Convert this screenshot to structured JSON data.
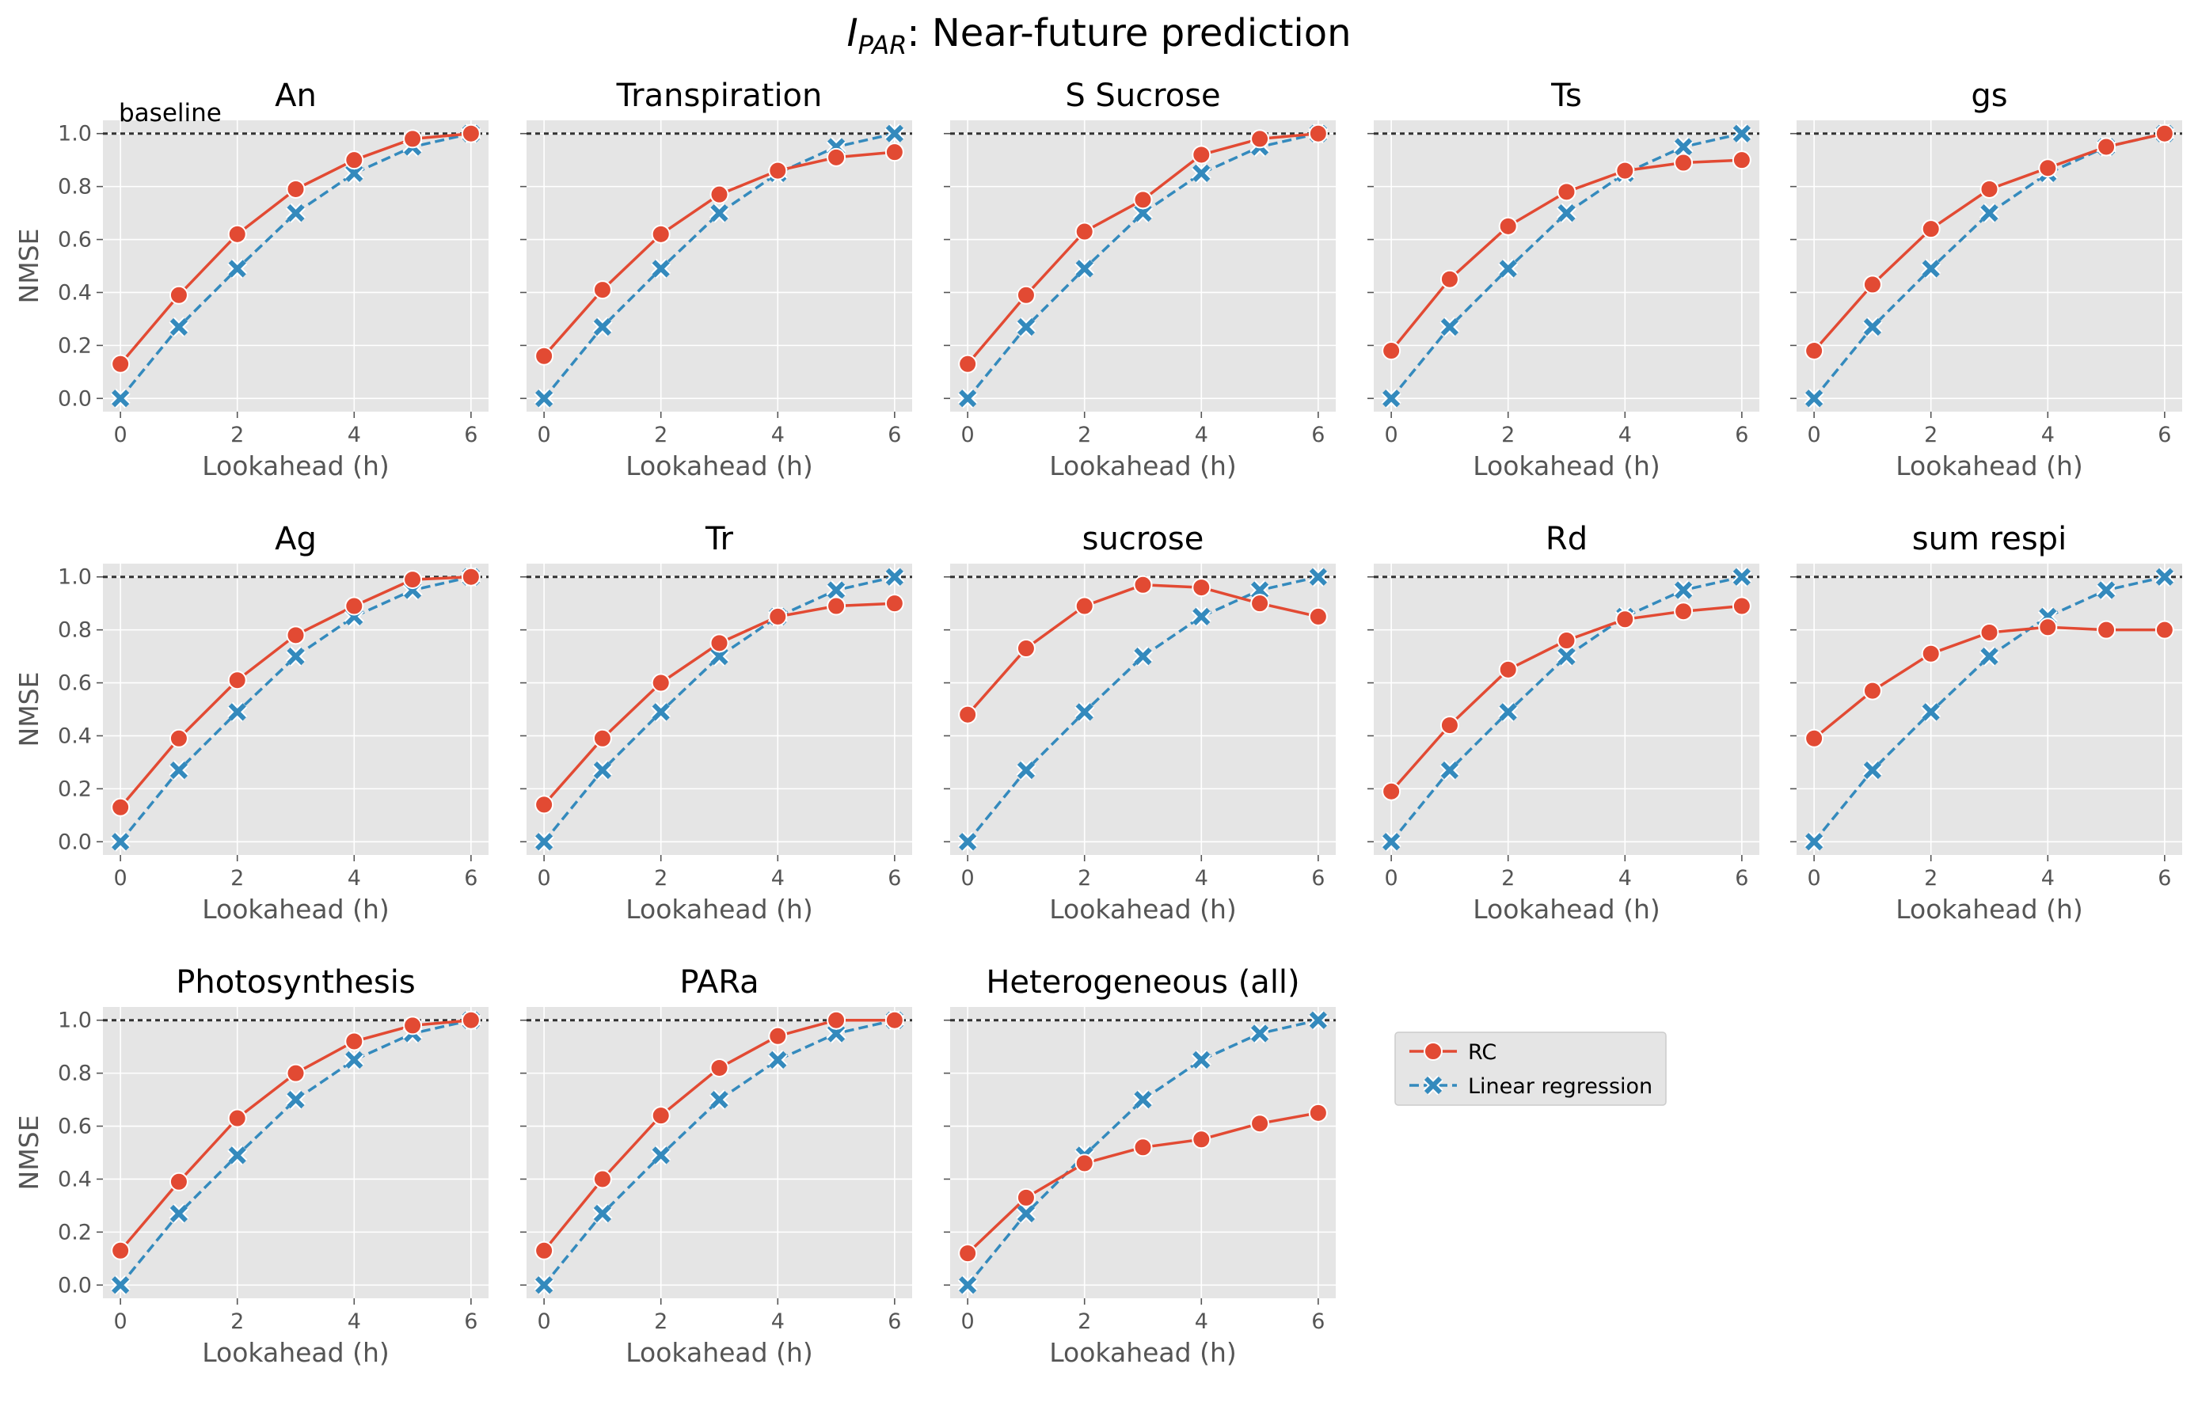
{
  "figure": {
    "title_prefix": "I",
    "title_subscript": "PAR",
    "title_rest": ": Near-future prediction",
    "baseline_label": "baseline",
    "legend": [
      {
        "label": "RC",
        "color": "#E24A33",
        "marker": "circle",
        "linestyle": "solid"
      },
      {
        "label": "Linear regression",
        "color": "#348ABD",
        "marker": "x",
        "linestyle": "dashed"
      }
    ],
    "colors": {
      "panel_bg": "#E5E5E5",
      "grid": "#FFFFFF",
      "baseline": "#333333",
      "rc": "#E24A33",
      "lr": "#348ABD"
    }
  },
  "chart_data": [
    {
      "type": "line",
      "title": "An",
      "xlabel": "Lookahead (h)",
      "ylabel": "NMSE",
      "x": [
        0,
        1,
        2,
        3,
        4,
        5,
        6
      ],
      "xlim": [
        -0.3,
        6.3
      ],
      "ylim": [
        -0.05,
        1.05
      ],
      "xticks": [
        0,
        2,
        4,
        6
      ],
      "yticks": [
        "0.0",
        "0.2",
        "0.4",
        "0.6",
        "0.8",
        "1.0"
      ],
      "baseline": 1.0,
      "grid": true,
      "series": [
        {
          "name": "RC",
          "values": [
            0.13,
            0.39,
            0.62,
            0.79,
            0.9,
            0.98,
            1.0
          ]
        },
        {
          "name": "Linear regression",
          "values": [
            0.0,
            0.27,
            0.49,
            0.7,
            0.85,
            0.95,
            1.0
          ]
        }
      ]
    },
    {
      "type": "line",
      "title": "Transpiration",
      "xlabel": "Lookahead (h)",
      "ylabel": "",
      "x": [
        0,
        1,
        2,
        3,
        4,
        5,
        6
      ],
      "xlim": [
        -0.3,
        6.3
      ],
      "ylim": [
        -0.05,
        1.05
      ],
      "xticks": [
        0,
        2,
        4,
        6
      ],
      "yticks": [
        "0.0",
        "0.2",
        "0.4",
        "0.6",
        "0.8",
        "1.0"
      ],
      "baseline": 1.0,
      "grid": true,
      "series": [
        {
          "name": "RC",
          "values": [
            0.16,
            0.41,
            0.62,
            0.77,
            0.86,
            0.91,
            0.93
          ]
        },
        {
          "name": "Linear regression",
          "values": [
            0.0,
            0.27,
            0.49,
            0.7,
            0.85,
            0.95,
            1.0
          ]
        }
      ]
    },
    {
      "type": "line",
      "title": "S Sucrose",
      "xlabel": "Lookahead (h)",
      "ylabel": "",
      "x": [
        0,
        1,
        2,
        3,
        4,
        5,
        6
      ],
      "xlim": [
        -0.3,
        6.3
      ],
      "ylim": [
        -0.05,
        1.05
      ],
      "xticks": [
        0,
        2,
        4,
        6
      ],
      "yticks": [
        "0.0",
        "0.2",
        "0.4",
        "0.6",
        "0.8",
        "1.0"
      ],
      "baseline": 1.0,
      "grid": true,
      "series": [
        {
          "name": "RC",
          "values": [
            0.13,
            0.39,
            0.63,
            0.75,
            0.92,
            0.98,
            1.0
          ]
        },
        {
          "name": "Linear regression",
          "values": [
            0.0,
            0.27,
            0.49,
            0.7,
            0.85,
            0.95,
            1.0
          ]
        }
      ]
    },
    {
      "type": "line",
      "title": "Ts",
      "xlabel": "Lookahead (h)",
      "ylabel": "",
      "x": [
        0,
        1,
        2,
        3,
        4,
        5,
        6
      ],
      "xlim": [
        -0.3,
        6.3
      ],
      "ylim": [
        -0.05,
        1.05
      ],
      "xticks": [
        0,
        2,
        4,
        6
      ],
      "yticks": [
        "0.0",
        "0.2",
        "0.4",
        "0.6",
        "0.8",
        "1.0"
      ],
      "baseline": 1.0,
      "grid": true,
      "series": [
        {
          "name": "RC",
          "values": [
            0.18,
            0.45,
            0.65,
            0.78,
            0.86,
            0.89,
            0.9
          ]
        },
        {
          "name": "Linear regression",
          "values": [
            0.0,
            0.27,
            0.49,
            0.7,
            0.85,
            0.95,
            1.0
          ]
        }
      ]
    },
    {
      "type": "line",
      "title": "gs",
      "xlabel": "Lookahead (h)",
      "ylabel": "",
      "x": [
        0,
        1,
        2,
        3,
        4,
        5,
        6
      ],
      "xlim": [
        -0.3,
        6.3
      ],
      "ylim": [
        -0.05,
        1.05
      ],
      "xticks": [
        0,
        2,
        4,
        6
      ],
      "yticks": [
        "0.0",
        "0.2",
        "0.4",
        "0.6",
        "0.8",
        "1.0"
      ],
      "baseline": 1.0,
      "grid": true,
      "series": [
        {
          "name": "RC",
          "values": [
            0.18,
            0.43,
            0.64,
            0.79,
            0.87,
            0.95,
            1.0
          ]
        },
        {
          "name": "Linear regression",
          "values": [
            0.0,
            0.27,
            0.49,
            0.7,
            0.85,
            0.95,
            1.0
          ]
        }
      ]
    },
    {
      "type": "line",
      "title": "Ag",
      "xlabel": "Lookahead (h)",
      "ylabel": "NMSE",
      "x": [
        0,
        1,
        2,
        3,
        4,
        5,
        6
      ],
      "xlim": [
        -0.3,
        6.3
      ],
      "ylim": [
        -0.05,
        1.05
      ],
      "xticks": [
        0,
        2,
        4,
        6
      ],
      "yticks": [
        "0.0",
        "0.2",
        "0.4",
        "0.6",
        "0.8",
        "1.0"
      ],
      "baseline": 1.0,
      "grid": true,
      "series": [
        {
          "name": "RC",
          "values": [
            0.13,
            0.39,
            0.61,
            0.78,
            0.89,
            0.99,
            1.0
          ]
        },
        {
          "name": "Linear regression",
          "values": [
            0.0,
            0.27,
            0.49,
            0.7,
            0.85,
            0.95,
            1.0
          ]
        }
      ]
    },
    {
      "type": "line",
      "title": "Tr",
      "xlabel": "Lookahead (h)",
      "ylabel": "",
      "x": [
        0,
        1,
        2,
        3,
        4,
        5,
        6
      ],
      "xlim": [
        -0.3,
        6.3
      ],
      "ylim": [
        -0.05,
        1.05
      ],
      "xticks": [
        0,
        2,
        4,
        6
      ],
      "yticks": [
        "0.0",
        "0.2",
        "0.4",
        "0.6",
        "0.8",
        "1.0"
      ],
      "baseline": 1.0,
      "grid": true,
      "series": [
        {
          "name": "RC",
          "values": [
            0.14,
            0.39,
            0.6,
            0.75,
            0.85,
            0.89,
            0.9
          ]
        },
        {
          "name": "Linear regression",
          "values": [
            0.0,
            0.27,
            0.49,
            0.7,
            0.85,
            0.95,
            1.0
          ]
        }
      ]
    },
    {
      "type": "line",
      "title": "sucrose",
      "xlabel": "Lookahead (h)",
      "ylabel": "",
      "x": [
        0,
        1,
        2,
        3,
        4,
        5,
        6
      ],
      "xlim": [
        -0.3,
        6.3
      ],
      "ylim": [
        -0.05,
        1.05
      ],
      "xticks": [
        0,
        2,
        4,
        6
      ],
      "yticks": [
        "0.0",
        "0.2",
        "0.4",
        "0.6",
        "0.8",
        "1.0"
      ],
      "baseline": 1.0,
      "grid": true,
      "series": [
        {
          "name": "RC",
          "values": [
            0.48,
            0.73,
            0.89,
            0.97,
            0.96,
            0.9,
            0.85
          ]
        },
        {
          "name": "Linear regression",
          "values": [
            0.0,
            0.27,
            0.49,
            0.7,
            0.85,
            0.95,
            1.0
          ]
        }
      ]
    },
    {
      "type": "line",
      "title": "Rd",
      "xlabel": "Lookahead (h)",
      "ylabel": "",
      "x": [
        0,
        1,
        2,
        3,
        4,
        5,
        6
      ],
      "xlim": [
        -0.3,
        6.3
      ],
      "ylim": [
        -0.05,
        1.05
      ],
      "xticks": [
        0,
        2,
        4,
        6
      ],
      "yticks": [
        "0.0",
        "0.2",
        "0.4",
        "0.6",
        "0.8",
        "1.0"
      ],
      "baseline": 1.0,
      "grid": true,
      "series": [
        {
          "name": "RC",
          "values": [
            0.19,
            0.44,
            0.65,
            0.76,
            0.84,
            0.87,
            0.89
          ]
        },
        {
          "name": "Linear regression",
          "values": [
            0.0,
            0.27,
            0.49,
            0.7,
            0.85,
            0.95,
            1.0
          ]
        }
      ]
    },
    {
      "type": "line",
      "title": "sum respi",
      "xlabel": "Lookahead (h)",
      "ylabel": "",
      "x": [
        0,
        1,
        2,
        3,
        4,
        5,
        6
      ],
      "xlim": [
        -0.3,
        6.3
      ],
      "ylim": [
        -0.05,
        1.05
      ],
      "xticks": [
        0,
        2,
        4,
        6
      ],
      "yticks": [
        "0.0",
        "0.2",
        "0.4",
        "0.6",
        "0.8",
        "1.0"
      ],
      "baseline": 1.0,
      "grid": true,
      "series": [
        {
          "name": "RC",
          "values": [
            0.39,
            0.57,
            0.71,
            0.79,
            0.81,
            0.8,
            0.8
          ]
        },
        {
          "name": "Linear regression",
          "values": [
            0.0,
            0.27,
            0.49,
            0.7,
            0.85,
            0.95,
            1.0
          ]
        }
      ]
    },
    {
      "type": "line",
      "title": "Photosynthesis",
      "xlabel": "Lookahead (h)",
      "ylabel": "NMSE",
      "x": [
        0,
        1,
        2,
        3,
        4,
        5,
        6
      ],
      "xlim": [
        -0.3,
        6.3
      ],
      "ylim": [
        -0.05,
        1.05
      ],
      "xticks": [
        0,
        2,
        4,
        6
      ],
      "yticks": [
        "0.0",
        "0.2",
        "0.4",
        "0.6",
        "0.8",
        "1.0"
      ],
      "baseline": 1.0,
      "grid": true,
      "series": [
        {
          "name": "RC",
          "values": [
            0.13,
            0.39,
            0.63,
            0.8,
            0.92,
            0.98,
            1.0
          ]
        },
        {
          "name": "Linear regression",
          "values": [
            0.0,
            0.27,
            0.49,
            0.7,
            0.85,
            0.95,
            1.0
          ]
        }
      ]
    },
    {
      "type": "line",
      "title": "PARa",
      "xlabel": "Lookahead (h)",
      "ylabel": "",
      "x": [
        0,
        1,
        2,
        3,
        4,
        5,
        6
      ],
      "xlim": [
        -0.3,
        6.3
      ],
      "ylim": [
        -0.05,
        1.05
      ],
      "xticks": [
        0,
        2,
        4,
        6
      ],
      "yticks": [
        "0.0",
        "0.2",
        "0.4",
        "0.6",
        "0.8",
        "1.0"
      ],
      "baseline": 1.0,
      "grid": true,
      "series": [
        {
          "name": "RC",
          "values": [
            0.13,
            0.4,
            0.64,
            0.82,
            0.94,
            1.0,
            1.0
          ]
        },
        {
          "name": "Linear regression",
          "values": [
            0.0,
            0.27,
            0.49,
            0.7,
            0.85,
            0.95,
            1.0
          ]
        }
      ]
    },
    {
      "type": "line",
      "title": "Heterogeneous (all)",
      "xlabel": "Lookahead (h)",
      "ylabel": "",
      "x": [
        0,
        1,
        2,
        3,
        4,
        5,
        6
      ],
      "xlim": [
        -0.3,
        6.3
      ],
      "ylim": [
        -0.05,
        1.05
      ],
      "xticks": [
        0,
        2,
        4,
        6
      ],
      "yticks": [
        "0.0",
        "0.2",
        "0.4",
        "0.6",
        "0.8",
        "1.0"
      ],
      "baseline": 1.0,
      "grid": true,
      "series": [
        {
          "name": "RC",
          "values": [
            0.12,
            0.33,
            0.46,
            0.52,
            0.55,
            0.61,
            0.65
          ]
        },
        {
          "name": "Linear regression",
          "values": [
            0.0,
            0.27,
            0.49,
            0.7,
            0.85,
            0.95,
            1.0
          ]
        }
      ]
    }
  ]
}
